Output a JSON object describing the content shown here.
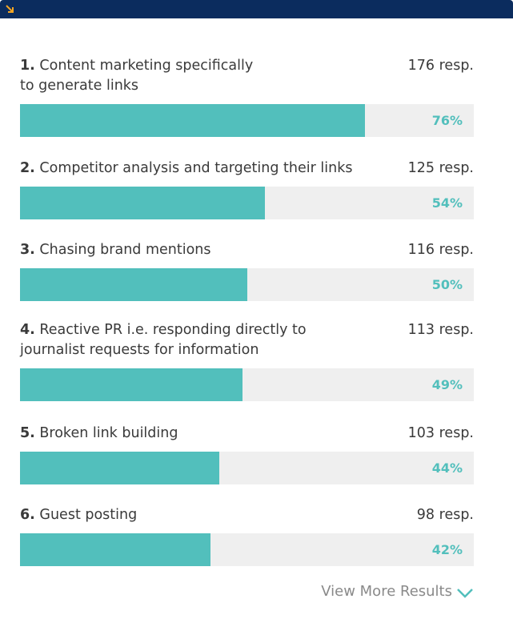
{
  "items": [
    {
      "rank": "1.",
      "label_lines": [
        "Content marketing specifically",
        "to generate links"
      ],
      "responses": "176 resp.",
      "percent": 76,
      "percent_label": "76%"
    },
    {
      "rank": "2.",
      "label_lines": [
        "Competitor analysis and targeting their links"
      ],
      "responses": "125 resp.",
      "percent": 54,
      "percent_label": "54%"
    },
    {
      "rank": "3.",
      "label_lines": [
        "Chasing brand mentions"
      ],
      "responses": "116 resp.",
      "percent": 50,
      "percent_label": "50%"
    },
    {
      "rank": "4.",
      "label_lines": [
        "Reactive PR i.e. responding directly to",
        "journalist requests for information"
      ],
      "responses": "113 resp.",
      "percent": 49,
      "percent_label": "49%"
    },
    {
      "rank": "5.",
      "label_lines": [
        "Broken link building"
      ],
      "responses": "103 resp.",
      "percent": 44,
      "percent_label": "44%"
    },
    {
      "rank": "6.",
      "label_lines": [
        "Guest posting"
      ],
      "responses": "98 resp.",
      "percent": 42,
      "percent_label": "42%"
    }
  ],
  "scale_max": 100,
  "bar_color": "#52bfbc",
  "footer": {
    "link": "View More Results"
  }
}
